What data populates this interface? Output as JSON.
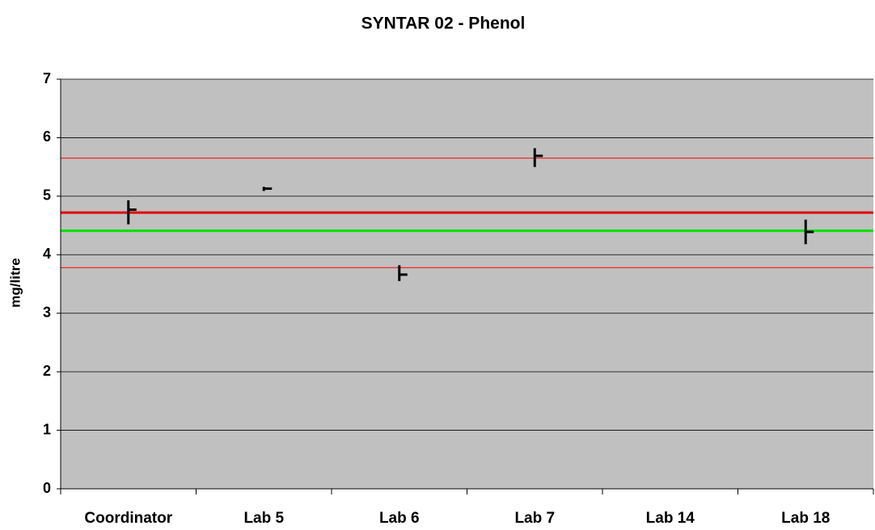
{
  "chart_data": {
    "type": "hilo",
    "title": "SYNTAR 02 - Phenol",
    "ylabel": "mg/litre",
    "categories": [
      "Coordinator",
      "Lab 5",
      "Lab 6",
      "Lab 7",
      "Lab 14",
      "Lab 18"
    ],
    "values": [
      4.77,
      5.13,
      3.66,
      5.69,
      null,
      4.39
    ],
    "high": [
      4.93,
      5.16,
      3.82,
      5.82,
      null,
      4.6
    ],
    "low": [
      4.52,
      5.09,
      3.55,
      5.5,
      null,
      4.18
    ],
    "color": "#000000",
    "lines": [
      {
        "value": 4.72,
        "color": "#e00000"
      },
      {
        "value": 4.41,
        "color": "#00e000"
      },
      {
        "value": 5.65,
        "color": "#ff0000"
      },
      {
        "value": 3.78,
        "color": "#ff0000"
      }
    ],
    "ylim": [
      0,
      7
    ],
    "yticks": [
      0,
      1,
      2,
      3,
      4,
      5,
      6,
      7
    ],
    "grid": true,
    "background": "#c0c0c0"
  }
}
